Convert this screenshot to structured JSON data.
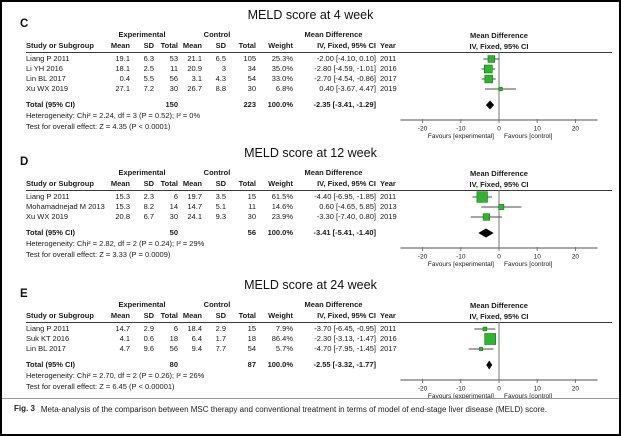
{
  "figure": {
    "caption_label": "Fig. 3",
    "caption_text": "Meta-analysis of the comparison between MSC therapy and conventional treatment in terms of model of end-stage liver disease (MELD) score."
  },
  "colors": {
    "marker_green": "#2db52d",
    "marker_green_border": "#0f7a0f",
    "diamond_black": "#000000",
    "ci_line": "#4d4d4d",
    "axis_line": "#757575"
  },
  "table_headers": {
    "group_experimental": "Experimental",
    "group_control": "Control",
    "group_mean_difference": "Mean Difference",
    "study": "Study or Subgroup",
    "mean": "Mean",
    "sd": "SD",
    "total": "Total",
    "weight": "Weight",
    "ci": "IV, Fixed, 95% CI",
    "year": "Year",
    "plot_title": "Mean Difference",
    "plot_subtitle": "IV, Fixed, 95% CI"
  },
  "axis": {
    "ticks": [
      -20,
      -10,
      0,
      10,
      20
    ],
    "min": -25,
    "max": 25,
    "favours_left": "Favours [experimental]",
    "favours_right": "Favours [control]"
  },
  "chart_data": [
    {
      "type": "forest",
      "panel_label": "C",
      "title": "MELD score at 4 week",
      "studies": [
        {
          "study": "Liang P 2011",
          "exp_mean": "19.1",
          "exp_sd": "6.3",
          "exp_total": "53",
          "ctl_mean": "21.1",
          "ctl_sd": "6.5",
          "ctl_total": "105",
          "weight": "25.3%",
          "ci_text": "-2.00 [-4.10, 0.10]",
          "year": "2011",
          "md": -2.0,
          "lo": -4.1,
          "hi": 0.1,
          "weight_pct": 25.3
        },
        {
          "study": "Li YH 2016",
          "exp_mean": "18.1",
          "exp_sd": "2.5",
          "exp_total": "11",
          "ctl_mean": "20.9",
          "ctl_sd": "3",
          "ctl_total": "34",
          "weight": "35.0%",
          "ci_text": "-2.80 [-4.59, -1.01]",
          "year": "2016",
          "md": -2.8,
          "lo": -4.59,
          "hi": -1.01,
          "weight_pct": 35.0
        },
        {
          "study": "Lin BL 2017",
          "exp_mean": "0.4",
          "exp_sd": "5.5",
          "exp_total": "56",
          "ctl_mean": "3.1",
          "ctl_sd": "4.3",
          "ctl_total": "54",
          "weight": "33.0%",
          "ci_text": "-2.70 [-4.54, -0.86]",
          "year": "2017",
          "md": -2.7,
          "lo": -4.54,
          "hi": -0.86,
          "weight_pct": 33.0
        },
        {
          "study": "Xu WX 2019",
          "exp_mean": "27.1",
          "exp_sd": "7.2",
          "exp_total": "30",
          "ctl_mean": "26.7",
          "ctl_sd": "8.8",
          "ctl_total": "30",
          "weight": "6.8%",
          "ci_text": "0.40 [-3.67, 4.47]",
          "year": "2019",
          "md": 0.4,
          "lo": -3.67,
          "hi": 4.47,
          "weight_pct": 6.8
        }
      ],
      "total": {
        "label": "Total (95% CI)",
        "exp_total": "150",
        "ctl_total": "223",
        "weight": "100.0%",
        "ci_text": "-2.35 [-3.41, -1.29]",
        "md": -2.35,
        "lo": -3.41,
        "hi": -1.29
      },
      "heterogeneity": "Heterogeneity: Chi² = 2.24, df = 3 (P = 0.52); I² = 0%",
      "overall_effect": "Test for overall effect: Z = 4.35 (P < 0.0001)"
    },
    {
      "type": "forest",
      "panel_label": "D",
      "title": "MELD score at 12 week",
      "studies": [
        {
          "study": "Liang P 2011",
          "exp_mean": "15.3",
          "exp_sd": "2.3",
          "exp_total": "6",
          "ctl_mean": "19.7",
          "ctl_sd": "3.5",
          "ctl_total": "15",
          "weight": "61.5%",
          "ci_text": "-4.40 [-6.95, -1.85]",
          "year": "2011",
          "md": -4.4,
          "lo": -6.95,
          "hi": -1.85,
          "weight_pct": 61.5
        },
        {
          "study": "Mohamadnejad M 2013",
          "exp_mean": "15.3",
          "exp_sd": "8.2",
          "exp_total": "14",
          "ctl_mean": "14.7",
          "ctl_sd": "5.1",
          "ctl_total": "11",
          "weight": "14.6%",
          "ci_text": "0.60 [-4.65, 5.85]",
          "year": "2013",
          "md": 0.6,
          "lo": -4.65,
          "hi": 5.85,
          "weight_pct": 14.6
        },
        {
          "study": "Xu WX 2019",
          "exp_mean": "20.8",
          "exp_sd": "6.7",
          "exp_total": "30",
          "ctl_mean": "24.1",
          "ctl_sd": "9.3",
          "ctl_total": "30",
          "weight": "23.9%",
          "ci_text": "-3.30 [-7.40, 0.80]",
          "year": "2019",
          "md": -3.3,
          "lo": -7.4,
          "hi": 0.8,
          "weight_pct": 23.9
        }
      ],
      "total": {
        "label": "Total (95% CI)",
        "exp_total": "50",
        "ctl_total": "56",
        "weight": "100.0%",
        "ci_text": "-3.41 [-5.41, -1.40]",
        "md": -3.41,
        "lo": -5.41,
        "hi": -1.4
      },
      "heterogeneity": "Heterogeneity: Chi² = 2.82, df = 2 (P = 0.24); I² = 29%",
      "overall_effect": "Test for overall effect: Z = 3.33 (P = 0.0009)"
    },
    {
      "type": "forest",
      "panel_label": "E",
      "title": "MELD score at 24 week",
      "studies": [
        {
          "study": "Liang P 2011",
          "exp_mean": "14.7",
          "exp_sd": "2.9",
          "exp_total": "6",
          "ctl_mean": "18.4",
          "ctl_sd": "2.9",
          "ctl_total": "15",
          "weight": "7.9%",
          "ci_text": "-3.70 [-6.45, -0.95]",
          "year": "2011",
          "md": -3.7,
          "lo": -6.45,
          "hi": -0.95,
          "weight_pct": 7.9
        },
        {
          "study": "Suk KT 2016",
          "exp_mean": "4.1",
          "exp_sd": "0.6",
          "exp_total": "18",
          "ctl_mean": "6.4",
          "ctl_sd": "1.7",
          "ctl_total": "18",
          "weight": "86.4%",
          "ci_text": "-2.30 [-3.13, -1.47]",
          "year": "2016",
          "md": -2.3,
          "lo": -3.13,
          "hi": -1.47,
          "weight_pct": 86.4
        },
        {
          "study": "Lin BL 2017",
          "exp_mean": "4.7",
          "exp_sd": "9.6",
          "exp_total": "56",
          "ctl_mean": "9.4",
          "ctl_sd": "7.7",
          "ctl_total": "54",
          "weight": "5.7%",
          "ci_text": "-4.70 [-7.95, -1.45]",
          "year": "2017",
          "md": -4.7,
          "lo": -7.95,
          "hi": -1.45,
          "weight_pct": 5.7
        }
      ],
      "total": {
        "label": "Total (95% CI)",
        "exp_total": "80",
        "ctl_total": "87",
        "weight": "100.0%",
        "ci_text": "-2.55 [-3.32, -1.77]",
        "md": -2.55,
        "lo": -3.32,
        "hi": -1.77
      },
      "heterogeneity": "Heterogeneity: Chi² = 2.70, df = 2 (P = 0.26); I² = 26%",
      "overall_effect": "Test for overall effect: Z = 6.45 (P < 0.00001)"
    }
  ]
}
